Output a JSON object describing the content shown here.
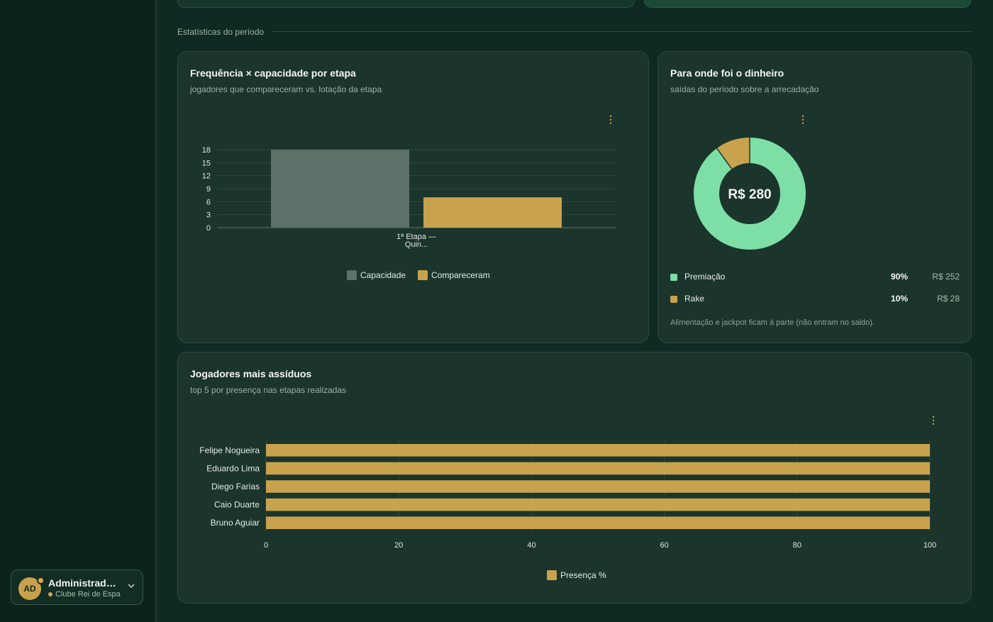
{
  "sidebar": {
    "user": {
      "initials": "AD",
      "name": "Administrador do Clube",
      "club": "Clube Rei de Espadas"
    }
  },
  "section": {
    "label": "Estatísticas do período"
  },
  "attendance_card": {
    "title": "Frequência × capacidade por etapa",
    "subtitle": "jogadores que compareceram vs. lotação da etapa"
  },
  "money_card": {
    "title": "Para onde foi o dinheiro",
    "subtitle": "saídas do período sobre a arrecadação",
    "center_label": "R$ 280",
    "items": [
      {
        "label": "Premiação",
        "pct": "90%",
        "amount": "R$ 252",
        "color": "#7ddfa6"
      },
      {
        "label": "Rake",
        "pct": "10%",
        "amount": "R$ 28",
        "color": "#c9a24d"
      }
    ],
    "note": "Alimentação e jackpot ficam à parte (não entram no saldo)."
  },
  "players_card": {
    "title": "Jogadores mais assíduos",
    "subtitle": "top 5 por presença nas etapas realizadas"
  },
  "chart_data": [
    {
      "type": "bar",
      "categories": [
        "1ª Etapa — Quin..."
      ],
      "series": [
        {
          "name": "Capacidade",
          "values": [
            18
          ],
          "color": "#5c7168"
        },
        {
          "name": "Compareceram",
          "values": [
            7
          ],
          "color": "#c9a24d"
        }
      ],
      "yticks": [
        0,
        3,
        6,
        9,
        12,
        15,
        18
      ],
      "ylim": [
        0,
        18
      ],
      "legend": "bottom",
      "grid": true
    },
    {
      "type": "pie",
      "donut": true,
      "labels": [
        "Premiação",
        "Rake"
      ],
      "values": [
        252,
        28
      ],
      "colors": [
        "#7ddfa6",
        "#c9a24d"
      ],
      "center_text": "R$ 280"
    },
    {
      "type": "bar",
      "orientation": "horizontal",
      "categories": [
        "Felipe Nogueira",
        "Eduardo Lima",
        "Diego Farias",
        "Caio Duarte",
        "Bruno Aguiar"
      ],
      "series": [
        {
          "name": "Presença %",
          "values": [
            100,
            100,
            100,
            100,
            100
          ],
          "color": "#c9a24d"
        }
      ],
      "xticks": [
        0,
        20,
        40,
        60,
        80,
        100
      ],
      "xlim": [
        0,
        100
      ],
      "legend": "bottom",
      "grid": true
    }
  ]
}
